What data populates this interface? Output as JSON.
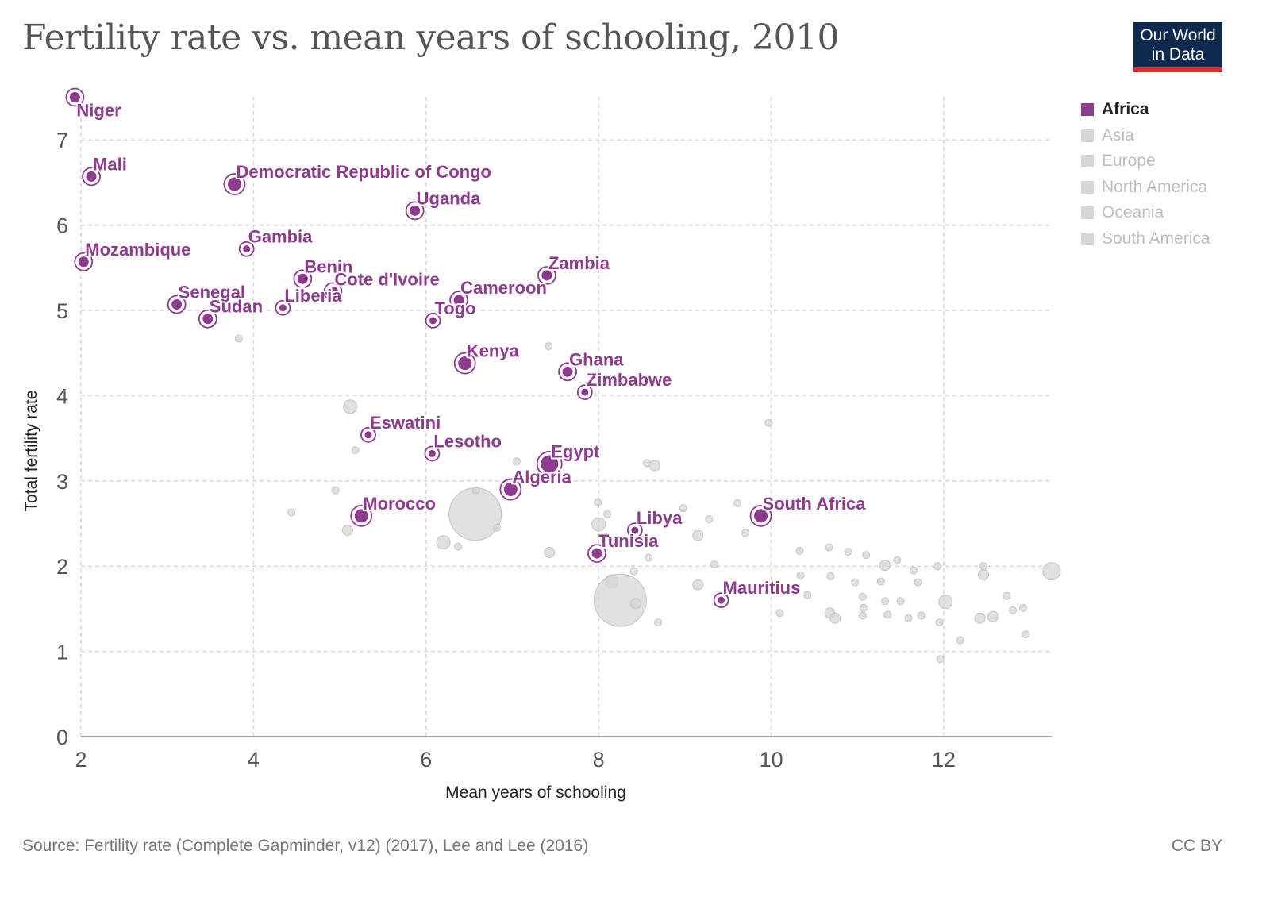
{
  "title": "Fertility rate vs. mean years of schooling, 2010",
  "logo": {
    "line1": "Our World",
    "line2": "in Data"
  },
  "source": "Source: Fertility rate (Complete Gapminder, v12) (2017), Lee and Lee (2016)",
  "license": "CC BY",
  "colors": {
    "africa": "#8e3a8e",
    "other": "#d6d6d6",
    "grid": "#d9d9d9",
    "axis": "#555555"
  },
  "legend": [
    {
      "label": "Africa",
      "active": true
    },
    {
      "label": "Asia",
      "active": false
    },
    {
      "label": "Europe",
      "active": false
    },
    {
      "label": "North America",
      "active": false
    },
    {
      "label": "Oceania",
      "active": false
    },
    {
      "label": "South America",
      "active": false
    }
  ],
  "chart_data": {
    "type": "scatter",
    "xlabel": "Mean years of schooling",
    "ylabel": "Total fertility rate",
    "xlim": [
      2,
      13.25
    ],
    "ylim": [
      0,
      7.6
    ],
    "xticks": [
      2,
      4,
      6,
      8,
      10,
      12
    ],
    "yticks": [
      0,
      1,
      2,
      3,
      4,
      5,
      6,
      7
    ],
    "highlighted_region": "Africa",
    "africa": [
      {
        "name": "Niger",
        "x": 1.93,
        "y": 7.5,
        "size": 2,
        "label": "below"
      },
      {
        "name": "Mali",
        "x": 2.12,
        "y": 6.57,
        "size": 2,
        "label": "above"
      },
      {
        "name": "Democratic Republic of Congo",
        "x": 3.78,
        "y": 6.48,
        "size": 3,
        "label": "above"
      },
      {
        "name": "Uganda",
        "x": 5.87,
        "y": 6.17,
        "size": 2,
        "label": "above"
      },
      {
        "name": "Gambia",
        "x": 3.92,
        "y": 5.72,
        "size": 1,
        "label": "above"
      },
      {
        "name": "Mozambique",
        "x": 2.03,
        "y": 5.57,
        "size": 2,
        "label": "above"
      },
      {
        "name": "Zambia",
        "x": 7.4,
        "y": 5.41,
        "size": 2,
        "label": "above"
      },
      {
        "name": "Benin",
        "x": 4.57,
        "y": 5.37,
        "size": 2,
        "label": "above"
      },
      {
        "name": "Cote d'Ivoire",
        "x": 4.92,
        "y": 5.22,
        "size": 2,
        "label": "above"
      },
      {
        "name": "Cameroon",
        "x": 6.38,
        "y": 5.12,
        "size": 2,
        "label": "above"
      },
      {
        "name": "Senegal",
        "x": 3.11,
        "y": 5.07,
        "size": 2,
        "label": "above"
      },
      {
        "name": "Liberia",
        "x": 4.34,
        "y": 5.03,
        "size": 1,
        "label": "above"
      },
      {
        "name": "Sudan",
        "x": 3.47,
        "y": 4.9,
        "size": 2,
        "label": "above"
      },
      {
        "name": "Togo",
        "x": 6.08,
        "y": 4.88,
        "size": 1,
        "label": "above"
      },
      {
        "name": "Kenya",
        "x": 6.45,
        "y": 4.38,
        "size": 3,
        "label": "above"
      },
      {
        "name": "Ghana",
        "x": 7.64,
        "y": 4.28,
        "size": 2,
        "label": "above"
      },
      {
        "name": "Zimbabwe",
        "x": 7.84,
        "y": 4.04,
        "size": 1,
        "label": "above"
      },
      {
        "name": "Eswatini",
        "x": 5.33,
        "y": 3.54,
        "size": 1,
        "label": "above"
      },
      {
        "name": "Lesotho",
        "x": 6.07,
        "y": 3.32,
        "size": 1,
        "label": "above"
      },
      {
        "name": "Egypt",
        "x": 7.43,
        "y": 3.2,
        "size": 4,
        "label": "above"
      },
      {
        "name": "Algeria",
        "x": 6.98,
        "y": 2.9,
        "size": 3,
        "label": "above"
      },
      {
        "name": "Morocco",
        "x": 5.25,
        "y": 2.59,
        "size": 3,
        "label": "above"
      },
      {
        "name": "South Africa",
        "x": 9.88,
        "y": 2.59,
        "size": 3,
        "label": "above"
      },
      {
        "name": "Libya",
        "x": 8.42,
        "y": 2.42,
        "size": 1,
        "label": "above"
      },
      {
        "name": "Tunisia",
        "x": 7.98,
        "y": 2.15,
        "size": 2,
        "label": "above"
      },
      {
        "name": "Mauritius",
        "x": 9.42,
        "y": 1.6,
        "size": 1,
        "label": "above"
      }
    ],
    "other_regions": [
      {
        "x": 3.83,
        "y": 4.67,
        "size": 1
      },
      {
        "x": 5.12,
        "y": 3.87,
        "size": 3
      },
      {
        "x": 5.18,
        "y": 3.36,
        "size": 1
      },
      {
        "x": 4.44,
        "y": 2.63,
        "size": 1
      },
      {
        "x": 4.95,
        "y": 2.89,
        "size": 1
      },
      {
        "x": 5.09,
        "y": 2.42,
        "size": 2
      },
      {
        "x": 6.57,
        "y": 2.61,
        "size": 8
      },
      {
        "x": 6.58,
        "y": 2.89,
        "size": 1
      },
      {
        "x": 6.2,
        "y": 2.28,
        "size": 3
      },
      {
        "x": 6.37,
        "y": 2.23,
        "size": 1
      },
      {
        "x": 6.82,
        "y": 2.45,
        "size": 1
      },
      {
        "x": 7.05,
        "y": 3.23,
        "size": 1
      },
      {
        "x": 7.42,
        "y": 4.58,
        "size": 1
      },
      {
        "x": 7.43,
        "y": 2.16,
        "size": 2
      },
      {
        "x": 8.0,
        "y": 2.49,
        "size": 3
      },
      {
        "x": 7.99,
        "y": 2.75,
        "size": 1
      },
      {
        "x": 8.1,
        "y": 2.61,
        "size": 1
      },
      {
        "x": 8.15,
        "y": 1.82,
        "size": 3
      },
      {
        "x": 8.25,
        "y": 1.6,
        "size": 8
      },
      {
        "x": 8.43,
        "y": 1.56,
        "size": 2
      },
      {
        "x": 8.41,
        "y": 1.94,
        "size": 1
      },
      {
        "x": 8.58,
        "y": 2.1,
        "size": 1
      },
      {
        "x": 8.56,
        "y": 3.21,
        "size": 1
      },
      {
        "x": 8.65,
        "y": 3.18,
        "size": 2
      },
      {
        "x": 8.69,
        "y": 1.34,
        "size": 1
      },
      {
        "x": 8.98,
        "y": 2.68,
        "size": 1
      },
      {
        "x": 9.15,
        "y": 2.36,
        "size": 2
      },
      {
        "x": 9.15,
        "y": 1.78,
        "size": 2
      },
      {
        "x": 9.28,
        "y": 2.55,
        "size": 1
      },
      {
        "x": 9.34,
        "y": 2.02,
        "size": 1
      },
      {
        "x": 9.61,
        "y": 2.74,
        "size": 1
      },
      {
        "x": 9.7,
        "y": 2.39,
        "size": 1
      },
      {
        "x": 9.97,
        "y": 3.68,
        "size": 1
      },
      {
        "x": 10.1,
        "y": 1.45,
        "size": 1
      },
      {
        "x": 10.33,
        "y": 2.18,
        "size": 1
      },
      {
        "x": 10.34,
        "y": 1.89,
        "size": 1
      },
      {
        "x": 10.42,
        "y": 1.66,
        "size": 1
      },
      {
        "x": 10.67,
        "y": 2.22,
        "size": 1
      },
      {
        "x": 10.69,
        "y": 1.88,
        "size": 1
      },
      {
        "x": 10.68,
        "y": 1.45,
        "size": 2
      },
      {
        "x": 10.74,
        "y": 1.39,
        "size": 2
      },
      {
        "x": 10.89,
        "y": 2.17,
        "size": 1
      },
      {
        "x": 10.97,
        "y": 1.81,
        "size": 1
      },
      {
        "x": 11.1,
        "y": 2.13,
        "size": 1
      },
      {
        "x": 11.06,
        "y": 1.64,
        "size": 1
      },
      {
        "x": 11.07,
        "y": 1.51,
        "size": 1
      },
      {
        "x": 11.06,
        "y": 1.42,
        "size": 1
      },
      {
        "x": 11.27,
        "y": 1.82,
        "size": 1
      },
      {
        "x": 11.32,
        "y": 2.01,
        "size": 2
      },
      {
        "x": 11.32,
        "y": 1.59,
        "size": 1
      },
      {
        "x": 11.35,
        "y": 1.43,
        "size": 1
      },
      {
        "x": 11.46,
        "y": 2.07,
        "size": 1
      },
      {
        "x": 11.5,
        "y": 1.59,
        "size": 1
      },
      {
        "x": 11.59,
        "y": 1.39,
        "size": 1
      },
      {
        "x": 11.65,
        "y": 1.95,
        "size": 1
      },
      {
        "x": 11.7,
        "y": 1.81,
        "size": 1
      },
      {
        "x": 11.74,
        "y": 1.42,
        "size": 1
      },
      {
        "x": 11.93,
        "y": 2.0,
        "size": 1
      },
      {
        "x": 11.95,
        "y": 1.34,
        "size": 1
      },
      {
        "x": 11.96,
        "y": 0.91,
        "size": 1
      },
      {
        "x": 12.02,
        "y": 1.58,
        "size": 3
      },
      {
        "x": 12.19,
        "y": 1.13,
        "size": 1
      },
      {
        "x": 12.42,
        "y": 1.39,
        "size": 2
      },
      {
        "x": 12.46,
        "y": 1.9,
        "size": 2
      },
      {
        "x": 12.46,
        "y": 2.0,
        "size": 1
      },
      {
        "x": 12.57,
        "y": 1.41,
        "size": 2
      },
      {
        "x": 12.73,
        "y": 1.65,
        "size": 1
      },
      {
        "x": 12.8,
        "y": 1.48,
        "size": 1
      },
      {
        "x": 12.92,
        "y": 1.51,
        "size": 1
      },
      {
        "x": 12.95,
        "y": 1.2,
        "size": 1
      },
      {
        "x": 13.25,
        "y": 1.94,
        "size": 4
      }
    ]
  }
}
